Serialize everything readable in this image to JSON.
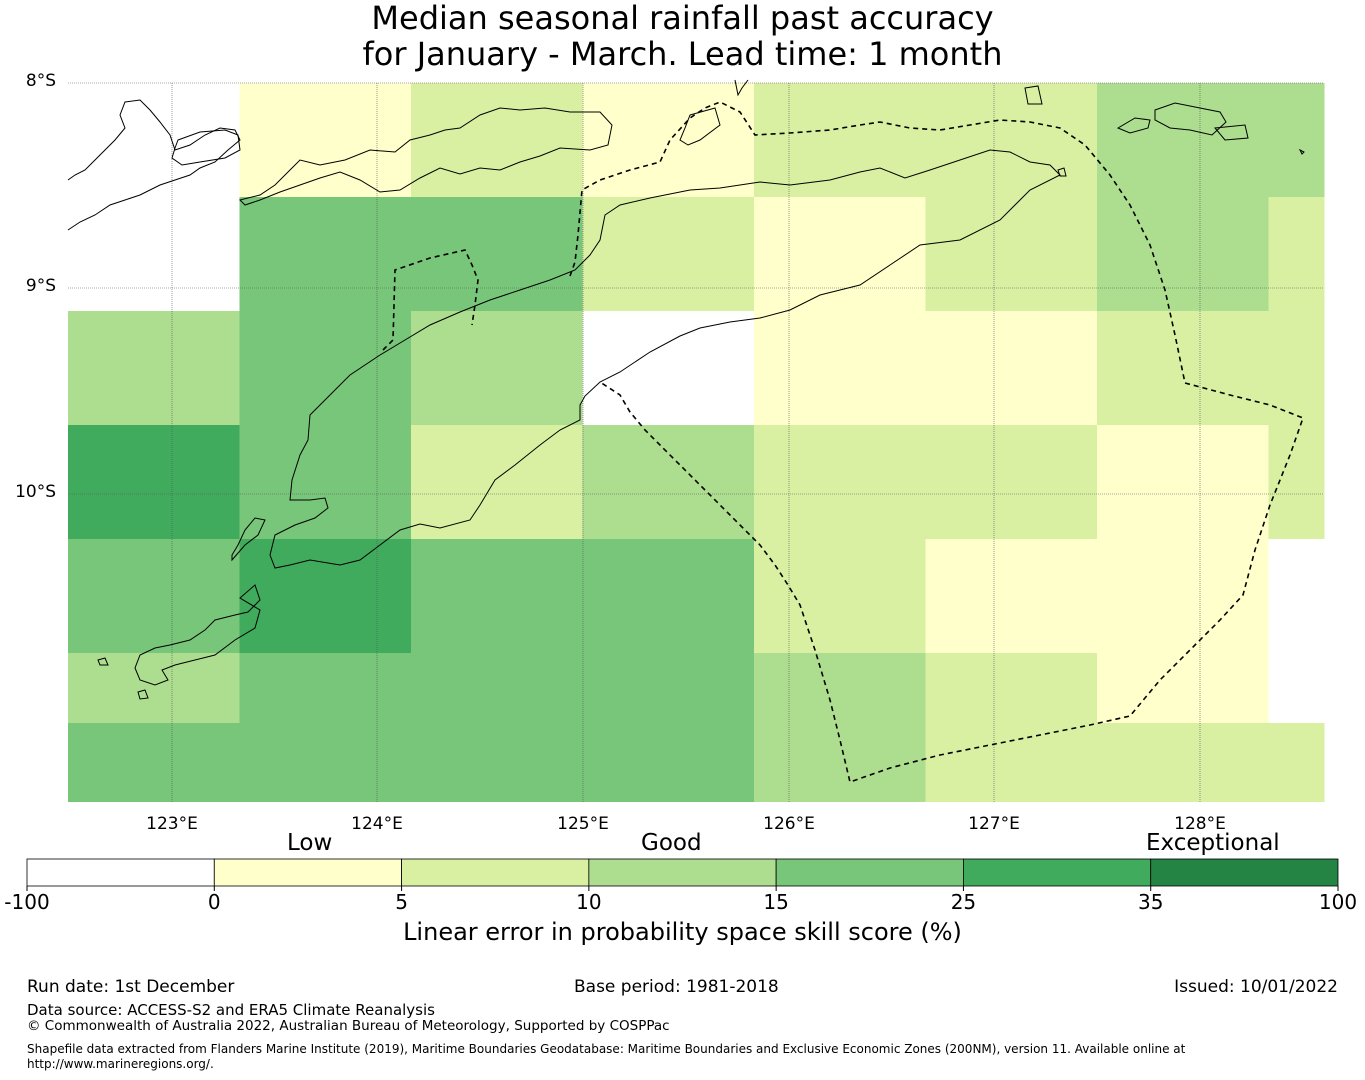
{
  "title": {
    "line1": "Median seasonal rainfall past accuracy",
    "line2": "for January - March. Lead time: 1 month"
  },
  "map": {
    "lat_labels": [
      "8°S",
      "9°S",
      "10°S"
    ],
    "lon_labels": [
      "123°E",
      "124°E",
      "125°E",
      "126°E",
      "127°E",
      "128°E"
    ],
    "grid_cols": 8,
    "grid_rows": 6,
    "cell_class_matrix": [
      [
        0,
        1,
        2,
        1,
        2,
        2,
        3,
        3
      ],
      [
        0,
        4,
        4,
        2,
        1,
        2,
        3,
        2
      ],
      [
        3,
        4,
        3,
        0,
        1,
        1,
        2,
        2
      ],
      [
        5,
        4,
        2,
        3,
        2,
        2,
        1,
        2
      ],
      [
        4,
        5,
        4,
        4,
        2,
        1,
        1,
        0
      ],
      [
        3,
        4,
        4,
        4,
        3,
        2,
        1,
        0
      ]
    ],
    "bottom_strip": [
      4,
      4,
      4,
      4,
      3,
      2,
      2,
      2
    ]
  },
  "colorbar": {
    "category_labels": [
      "Low",
      "Good",
      "Exceptional"
    ],
    "ticks": [
      "-100",
      "0",
      "5",
      "10",
      "15",
      "25",
      "35",
      "100"
    ],
    "colors": [
      "#ffffff",
      "#ffffcc",
      "#d9f0a3",
      "#addd8e",
      "#78c679",
      "#41ab5d",
      "#238443"
    ],
    "title": "Linear error in probability space skill score (%)"
  },
  "footer": {
    "run_date": "Run date: 1st December",
    "base_period": "Base period: 1981-2018",
    "issued": "Issued: 10/01/2022",
    "data_source": "Data source: ACCESS-S2 and ERA5 Climate Reanalysis",
    "copyright": "© Commonwealth of Australia 2022, Australian Bureau of Meteorology, Supported by COSPPac",
    "shapefile_line1": "Shapefile data extracted from Flanders Marine Institute (2019), Maritime Boundaries Geodatabase: Maritime Boundaries and Exclusive Economic Zones (200NM), version 11. Available online at",
    "shapefile_line2": "http://www.marineregions.org/."
  }
}
